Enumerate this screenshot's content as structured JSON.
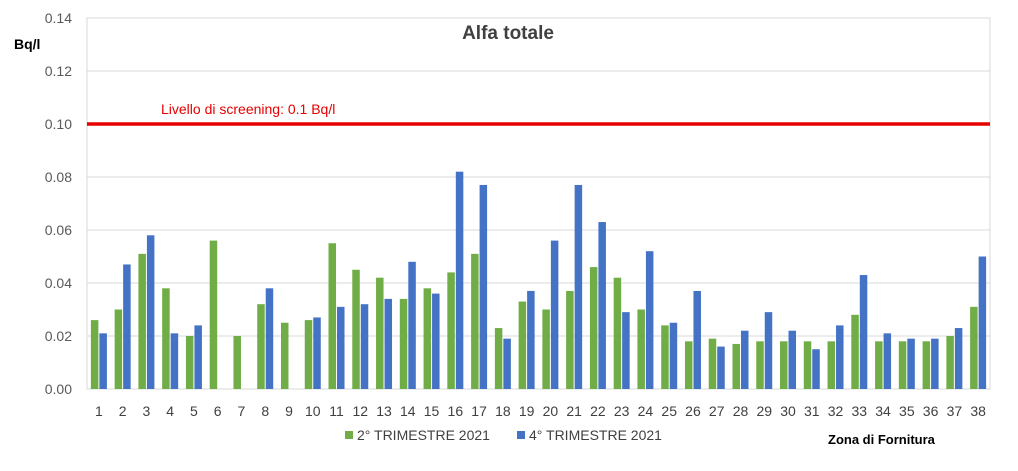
{
  "chart_data": {
    "type": "bar",
    "title": "Alfa totale",
    "ylabel": "Bq/l",
    "xlabel": "Zona di Fornitura",
    "ylim": [
      0,
      0.14
    ],
    "yticks": [
      "0.00",
      "0.02",
      "0.04",
      "0.06",
      "0.08",
      "0.10",
      "0.12",
      "0.14"
    ],
    "grid": true,
    "legend_position": "bottom",
    "categories": [
      "1",
      "2",
      "3",
      "4",
      "5",
      "6",
      "7",
      "8",
      "9",
      "10",
      "11",
      "12",
      "13",
      "14",
      "15",
      "16",
      "17",
      "18",
      "19",
      "20",
      "21",
      "22",
      "23",
      "24",
      "25",
      "26",
      "27",
      "28",
      "29",
      "30",
      "31",
      "32",
      "33",
      "34",
      "35",
      "36",
      "37",
      "38"
    ],
    "series": [
      {
        "name": "2° TRIMESTRE 2021",
        "color": "#70ad47",
        "values": [
          0.026,
          0.03,
          0.051,
          0.038,
          0.02,
          0.056,
          0.02,
          0.032,
          0.025,
          0.026,
          0.055,
          0.045,
          0.042,
          0.034,
          0.038,
          0.044,
          0.051,
          0.023,
          0.033,
          0.03,
          0.037,
          0.046,
          0.042,
          0.03,
          0.024,
          0.018,
          0.019,
          0.017,
          0.018,
          0.018,
          0.018,
          0.018,
          0.028,
          0.018,
          0.018,
          0.018,
          0.02,
          0.031
        ]
      },
      {
        "name": "4° TRIMESTRE 2021",
        "color": "#4472c4",
        "values": [
          0.021,
          0.047,
          0.058,
          0.021,
          0.024,
          null,
          null,
          0.038,
          null,
          0.027,
          0.031,
          0.032,
          0.034,
          0.048,
          0.036,
          0.082,
          0.077,
          0.019,
          0.037,
          0.056,
          0.077,
          0.063,
          0.029,
          0.052,
          0.025,
          0.037,
          0.016,
          0.022,
          0.029,
          0.022,
          0.015,
          0.024,
          0.043,
          0.021,
          0.019,
          0.019,
          0.023,
          0.05
        ]
      }
    ],
    "reference_line": {
      "value": 0.1,
      "label": "Livello di screening: 0.1 Bq/l",
      "color": "#e60000"
    }
  }
}
